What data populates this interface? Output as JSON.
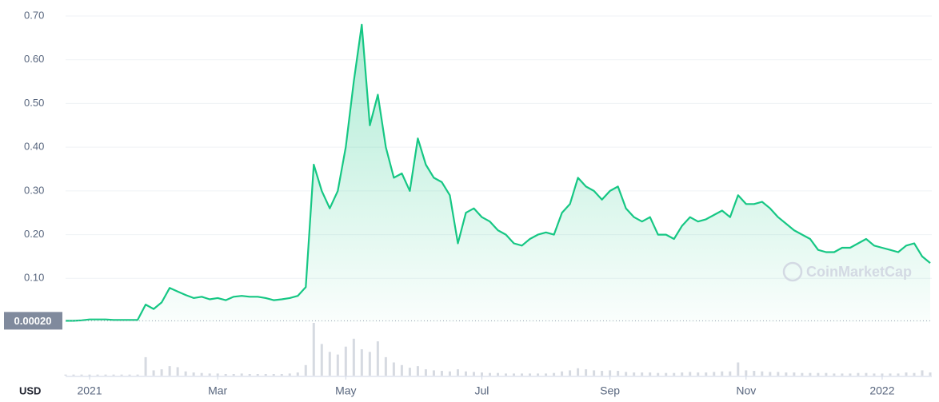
{
  "chart_data": {
    "type": "line",
    "currency": "USD",
    "watermark": "CoinMarketCap",
    "baseline_label": "0.00020",
    "color": "#16c784",
    "categories": [
      null,
      null,
      null,
      "2021",
      null,
      null,
      null,
      null,
      null,
      null,
      null,
      null,
      null,
      null,
      null,
      null,
      null,
      null,
      null,
      "Mar",
      null,
      null,
      null,
      null,
      null,
      null,
      null,
      null,
      null,
      null,
      null,
      null,
      null,
      null,
      null,
      "May",
      null,
      null,
      null,
      null,
      null,
      null,
      null,
      null,
      null,
      null,
      null,
      null,
      null,
      null,
      null,
      null,
      "Jul",
      null,
      null,
      null,
      null,
      null,
      null,
      null,
      null,
      null,
      null,
      null,
      null,
      null,
      null,
      null,
      "Sep",
      null,
      null,
      null,
      null,
      null,
      null,
      null,
      null,
      null,
      null,
      null,
      null,
      null,
      null,
      null,
      null,
      "Nov",
      null,
      null,
      null,
      null,
      null,
      null,
      null,
      null,
      null,
      null,
      null,
      null,
      null,
      null,
      null,
      null,
      "2022",
      null,
      null,
      null,
      null,
      null,
      null
    ],
    "values": [
      0.003,
      0.003,
      0.004,
      0.006,
      0.006,
      0.006,
      0.005,
      0.005,
      0.005,
      0.005,
      0.04,
      0.03,
      0.045,
      0.078,
      0.07,
      0.062,
      0.055,
      0.058,
      0.052,
      0.055,
      0.05,
      0.058,
      0.06,
      0.058,
      0.058,
      0.055,
      0.05,
      0.052,
      0.055,
      0.06,
      0.08,
      0.36,
      0.3,
      0.26,
      0.3,
      0.4,
      0.55,
      0.68,
      0.45,
      0.52,
      0.4,
      0.33,
      0.34,
      0.3,
      0.42,
      0.36,
      0.33,
      0.32,
      0.29,
      0.18,
      0.25,
      0.26,
      0.24,
      0.23,
      0.21,
      0.2,
      0.18,
      0.175,
      0.19,
      0.2,
      0.205,
      0.2,
      0.25,
      0.27,
      0.33,
      0.31,
      0.3,
      0.28,
      0.3,
      0.31,
      0.26,
      0.24,
      0.23,
      0.24,
      0.2,
      0.2,
      0.19,
      0.22,
      0.24,
      0.23,
      0.235,
      0.245,
      0.255,
      0.24,
      0.29,
      0.27,
      0.27,
      0.275,
      0.26,
      0.24,
      0.225,
      0.21,
      0.2,
      0.19,
      0.165,
      0.16,
      0.16,
      0.17,
      0.17,
      0.18,
      0.19,
      0.175,
      0.17,
      0.165,
      0.16,
      0.175,
      0.18,
      0.15,
      0.135
    ],
    "volume": [
      2,
      2,
      2,
      2,
      2,
      2,
      2,
      2,
      2,
      2,
      35,
      10,
      12,
      18,
      16,
      8,
      6,
      5,
      4,
      4,
      3,
      3,
      4,
      3,
      3,
      3,
      3,
      3,
      4,
      6,
      20,
      100,
      60,
      45,
      40,
      55,
      70,
      50,
      45,
      65,
      35,
      25,
      20,
      15,
      18,
      12,
      10,
      9,
      8,
      12,
      8,
      7,
      6,
      5,
      5,
      4,
      4,
      4,
      4,
      4,
      4,
      5,
      8,
      10,
      14,
      12,
      10,
      9,
      10,
      9,
      7,
      6,
      6,
      6,
      5,
      5,
      5,
      6,
      7,
      6,
      6,
      7,
      8,
      8,
      25,
      10,
      9,
      8,
      7,
      7,
      6,
      6,
      5,
      5,
      5,
      5,
      4,
      4,
      4,
      5,
      5,
      4,
      4,
      4,
      4,
      6,
      5,
      10,
      6
    ],
    "ylim": [
      0,
      0.7
    ],
    "yticks": [
      {
        "value": 0.1,
        "label": "0.10"
      },
      {
        "value": 0.2,
        "label": "0.20"
      },
      {
        "value": 0.3,
        "label": "0.30"
      },
      {
        "value": 0.4,
        "label": "0.40"
      },
      {
        "value": 0.5,
        "label": "0.50"
      },
      {
        "value": 0.6,
        "label": "0.60"
      },
      {
        "value": 0.7,
        "label": "0.70"
      }
    ],
    "grid": true
  }
}
